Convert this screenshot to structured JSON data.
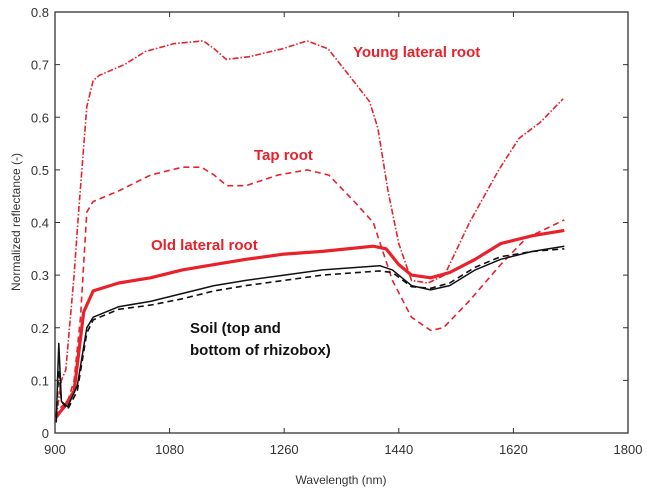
{
  "chart_data": {
    "type": "line",
    "title": "",
    "xlabel": "Wavelength (nm)",
    "ylabel": "Normalized reflectance (-)",
    "xlim": [
      900,
      1800
    ],
    "ylim": [
      0,
      0.8
    ],
    "xticks": [
      900,
      1080,
      1260,
      1440,
      1620,
      1800
    ],
    "yticks": [
      0,
      0.1,
      0.2,
      0.3,
      0.4,
      0.5,
      0.6,
      0.7,
      0.8
    ],
    "ytick_labels": [
      "0",
      "0.1",
      "0.2",
      "0.3",
      "0.4",
      "0.5",
      "0.6",
      "0.7",
      "0.8"
    ],
    "grid": false,
    "colors": {
      "red": "#e8212b",
      "black": "#111111"
    },
    "annotations": [
      {
        "text": "Young lateral root",
        "color": "#e8212b"
      },
      {
        "text": "Tap root",
        "color": "#e8212b"
      },
      {
        "text": "Old lateral root",
        "color": "#e8212b"
      },
      {
        "text": "Soil (top and",
        "color": "#111111"
      },
      {
        "text": "bottom of rhizobox)",
        "color": "#111111"
      }
    ],
    "series": [
      {
        "name": "Young lateral root",
        "style": "dashdot",
        "color": "#e8212b",
        "x": [
          902,
          910,
          917,
          930,
          937,
          950,
          960,
          970,
          1009,
          1042,
          1087,
          1133,
          1150,
          1169,
          1205,
          1257,
          1296,
          1329,
          1368,
          1394,
          1407,
          1423,
          1440,
          1460,
          1486,
          1512,
          1551,
          1597,
          1629,
          1662,
          1698
        ],
        "y": [
          0.03,
          0.1,
          0.12,
          0.3,
          0.42,
          0.62,
          0.67,
          0.68,
          0.7,
          0.725,
          0.74,
          0.745,
          0.73,
          0.71,
          0.715,
          0.73,
          0.745,
          0.73,
          0.67,
          0.63,
          0.58,
          0.46,
          0.36,
          0.29,
          0.285,
          0.3,
          0.4,
          0.5,
          0.56,
          0.59,
          0.635
        ]
      },
      {
        "name": "Tap root",
        "style": "dashed",
        "color": "#e8212b",
        "x": [
          902,
          910,
          920,
          930,
          940,
          950,
          960,
          1000,
          1050,
          1100,
          1130,
          1150,
          1170,
          1200,
          1250,
          1296,
          1330,
          1370,
          1400,
          1430,
          1460,
          1490,
          1510,
          1550,
          1600,
          1640,
          1700
        ],
        "y": [
          0.03,
          0.05,
          0.06,
          0.1,
          0.22,
          0.42,
          0.44,
          0.46,
          0.49,
          0.505,
          0.505,
          0.49,
          0.47,
          0.47,
          0.49,
          0.5,
          0.49,
          0.44,
          0.4,
          0.29,
          0.22,
          0.195,
          0.2,
          0.25,
          0.32,
          0.37,
          0.405
        ]
      },
      {
        "name": "Old lateral root",
        "style": "thick",
        "color": "#e8212b",
        "x": [
          902,
          908,
          915,
          930,
          945,
          960,
          1000,
          1050,
          1100,
          1150,
          1200,
          1260,
          1320,
          1400,
          1420,
          1440,
          1460,
          1490,
          1520,
          1560,
          1600,
          1650,
          1700
        ],
        "y": [
          0.03,
          0.04,
          0.05,
          0.08,
          0.23,
          0.27,
          0.285,
          0.295,
          0.31,
          0.32,
          0.33,
          0.34,
          0.345,
          0.355,
          0.35,
          0.32,
          0.3,
          0.295,
          0.305,
          0.33,
          0.36,
          0.375,
          0.385
        ]
      },
      {
        "name": "Soil (top)",
        "style": "solid",
        "color": "#111111",
        "x": [
          902,
          904,
          906,
          910,
          920,
          935,
          950,
          960,
          1000,
          1050,
          1100,
          1150,
          1200,
          1260,
          1320,
          1410,
          1430,
          1460,
          1490,
          1520,
          1560,
          1600,
          1650,
          1700
        ],
        "y": [
          0.02,
          0.1,
          0.17,
          0.06,
          0.05,
          0.09,
          0.2,
          0.22,
          0.24,
          0.25,
          0.265,
          0.28,
          0.29,
          0.3,
          0.31,
          0.318,
          0.31,
          0.28,
          0.272,
          0.28,
          0.31,
          0.33,
          0.345,
          0.355
        ]
      },
      {
        "name": "Soil (bottom)",
        "style": "dashed",
        "color": "#111111",
        "x": [
          902,
          906,
          910,
          920,
          935,
          950,
          960,
          1000,
          1050,
          1100,
          1150,
          1200,
          1260,
          1320,
          1410,
          1430,
          1460,
          1490,
          1520,
          1560,
          1600,
          1650,
          1700
        ],
        "y": [
          0.03,
          0.12,
          0.06,
          0.045,
          0.08,
          0.19,
          0.215,
          0.235,
          0.243,
          0.255,
          0.27,
          0.28,
          0.29,
          0.3,
          0.308,
          0.305,
          0.278,
          0.275,
          0.285,
          0.315,
          0.335,
          0.345,
          0.35
        ]
      }
    ]
  }
}
